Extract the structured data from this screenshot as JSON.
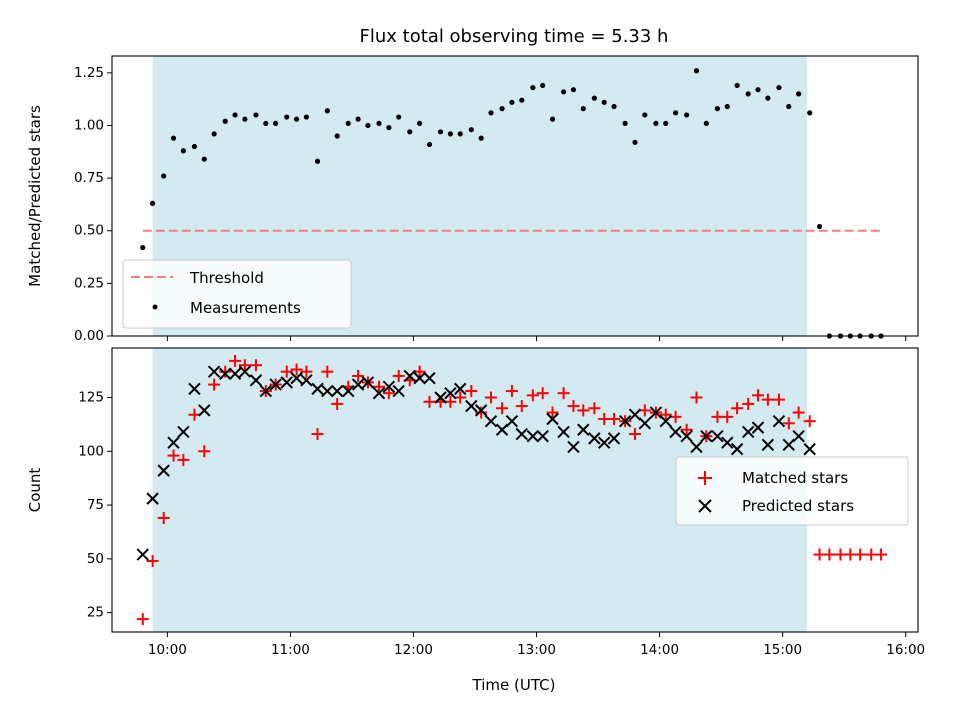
{
  "chart_data": [
    {
      "type": "scatter",
      "title": "Flux total observing time = 5.33 h",
      "xlabel": "",
      "ylabel": "Matched/Predicted stars",
      "ylim": [
        0,
        1.33
      ],
      "yticks": [
        "0.00",
        "0.25",
        "0.50",
        "0.75",
        "1.00",
        "1.25"
      ],
      "ytick_values": [
        0,
        0.25,
        0.5,
        0.75,
        1.0,
        1.25
      ],
      "xlim_hours": [
        9.55,
        16.1
      ],
      "shaded_span_hours": [
        9.88,
        15.2
      ],
      "shade_color": "#d3eaf0",
      "threshold": {
        "name": "Threshold",
        "value": 0.5,
        "x_hours": [
          9.8,
          15.8
        ],
        "color": "#f08080"
      },
      "series": [
        {
          "name": "Measurements",
          "color": "#000000",
          "x_hours": [
            9.8,
            9.88,
            9.97,
            10.05,
            10.13,
            10.22,
            10.3,
            10.38,
            10.47,
            10.55,
            10.63,
            10.72,
            10.8,
            10.88,
            10.97,
            11.05,
            11.13,
            11.22,
            11.3,
            11.38,
            11.47,
            11.55,
            11.63,
            11.72,
            11.8,
            11.88,
            11.97,
            12.05,
            12.13,
            12.22,
            12.3,
            12.38,
            12.47,
            12.55,
            12.63,
            12.72,
            12.8,
            12.88,
            12.97,
            13.05,
            13.13,
            13.22,
            13.3,
            13.38,
            13.47,
            13.55,
            13.63,
            13.72,
            13.8,
            13.88,
            13.97,
            14.05,
            14.13,
            14.22,
            14.3,
            14.38,
            14.47,
            14.55,
            14.63,
            14.72,
            14.8,
            14.88,
            14.97,
            15.05,
            15.13,
            15.22,
            15.3,
            15.38,
            15.47,
            15.55,
            15.63,
            15.72,
            15.8
          ],
          "values": [
            0.42,
            0.63,
            0.76,
            0.94,
            0.88,
            0.9,
            0.84,
            0.96,
            1.02,
            1.05,
            1.03,
            1.05,
            1.01,
            1.01,
            1.04,
            1.03,
            1.04,
            0.83,
            1.07,
            0.95,
            1.01,
            1.03,
            1.0,
            1.01,
            0.99,
            1.04,
            0.97,
            1.01,
            0.91,
            0.97,
            0.96,
            0.96,
            0.98,
            0.94,
            1.06,
            1.08,
            1.11,
            1.12,
            1.18,
            1.19,
            1.03,
            1.16,
            1.17,
            1.08,
            1.13,
            1.11,
            1.09,
            1.01,
            0.92,
            1.05,
            1.01,
            1.01,
            1.06,
            1.05,
            1.26,
            1.01,
            1.08,
            1.09,
            1.19,
            1.15,
            1.17,
            1.13,
            1.18,
            1.09,
            1.15,
            1.06,
            0.52,
            0.0,
            0.0,
            0.0,
            0.0,
            0.0,
            0.0
          ]
        }
      ],
      "legend": {
        "placement": "lower-left",
        "entries": [
          "Threshold",
          "Measurements"
        ]
      }
    },
    {
      "type": "scatter",
      "xlabel": "Time (UTC)",
      "ylabel": "Count",
      "ylim": [
        16,
        148
      ],
      "yticks": [
        "25",
        "50",
        "75",
        "100",
        "125"
      ],
      "ytick_values": [
        25,
        50,
        75,
        100,
        125
      ],
      "xticks": [
        "10:00",
        "11:00",
        "12:00",
        "13:00",
        "14:00",
        "15:00",
        "16:00"
      ],
      "xtick_hours": [
        10,
        11,
        12,
        13,
        14,
        15,
        16
      ],
      "xlim_hours": [
        9.55,
        16.1
      ],
      "shaded_span_hours": [
        9.88,
        15.2
      ],
      "series": [
        {
          "name": "Matched stars",
          "marker": "plus",
          "color": "#ff0000",
          "x_hours": [
            9.8,
            9.88,
            9.97,
            10.05,
            10.13,
            10.22,
            10.3,
            10.38,
            10.47,
            10.55,
            10.63,
            10.72,
            10.8,
            10.88,
            10.97,
            11.05,
            11.13,
            11.22,
            11.3,
            11.38,
            11.47,
            11.55,
            11.63,
            11.72,
            11.8,
            11.88,
            11.97,
            12.05,
            12.13,
            12.22,
            12.3,
            12.38,
            12.47,
            12.55,
            12.63,
            12.72,
            12.8,
            12.88,
            12.97,
            13.05,
            13.13,
            13.22,
            13.3,
            13.38,
            13.47,
            13.55,
            13.63,
            13.72,
            13.8,
            13.88,
            13.97,
            14.05,
            14.13,
            14.22,
            14.3,
            14.38,
            14.47,
            14.55,
            14.63,
            14.72,
            14.8,
            14.88,
            14.97,
            15.05,
            15.13,
            15.22,
            15.3,
            15.38,
            15.47,
            15.55,
            15.63,
            15.72,
            15.8
          ],
          "values": [
            22,
            49,
            69,
            98,
            96,
            117,
            100,
            131,
            137,
            142,
            140,
            140,
            128,
            131,
            137,
            138,
            137,
            108,
            137,
            122,
            130,
            135,
            132,
            130,
            127,
            135,
            133,
            137,
            123,
            123,
            123,
            125,
            128,
            118,
            125,
            120,
            128,
            121,
            126,
            127,
            118,
            127,
            121,
            119,
            120,
            115,
            115,
            114,
            108,
            119,
            118,
            117,
            116,
            110,
            125,
            107,
            116,
            116,
            120,
            122,
            126,
            124,
            124,
            113,
            118,
            114,
            52,
            52,
            52,
            52,
            52,
            52,
            52
          ]
        },
        {
          "name": "Predicted stars",
          "marker": "x",
          "color": "#000000",
          "x_hours": [
            9.8,
            9.88,
            9.97,
            10.05,
            10.13,
            10.22,
            10.3,
            10.38,
            10.47,
            10.55,
            10.63,
            10.72,
            10.8,
            10.88,
            10.97,
            11.05,
            11.13,
            11.22,
            11.3,
            11.38,
            11.47,
            11.55,
            11.63,
            11.72,
            11.8,
            11.88,
            11.97,
            12.05,
            12.13,
            12.22,
            12.3,
            12.38,
            12.47,
            12.55,
            12.63,
            12.72,
            12.8,
            12.88,
            12.97,
            13.05,
            13.13,
            13.22,
            13.3,
            13.38,
            13.47,
            13.55,
            13.63,
            13.72,
            13.8,
            13.88,
            13.97,
            14.05,
            14.13,
            14.22,
            14.3,
            14.38,
            14.47,
            14.55,
            14.63,
            14.72,
            14.8,
            14.88,
            14.97,
            15.05,
            15.13,
            15.22
          ],
          "values": [
            52,
            78,
            91,
            104,
            109,
            129,
            119,
            137,
            136,
            136,
            137,
            133,
            128,
            131,
            132,
            134,
            133,
            129,
            128,
            128,
            128,
            131,
            132,
            127,
            130,
            128,
            135,
            134,
            134,
            125,
            127,
            129,
            121,
            119,
            114,
            110,
            114,
            108,
            107,
            107,
            115,
            109,
            102,
            110,
            106,
            104,
            106,
            114,
            117,
            113,
            118,
            114,
            109,
            107,
            102,
            107,
            107,
            104,
            101,
            109,
            111,
            103,
            114,
            103,
            107,
            101
          ]
        }
      ],
      "legend": {
        "placement": "right",
        "entries": [
          "Matched stars",
          "Predicted stars"
        ]
      }
    }
  ]
}
